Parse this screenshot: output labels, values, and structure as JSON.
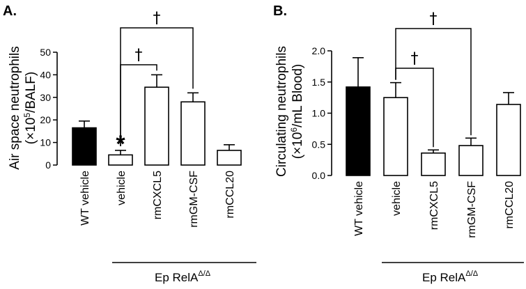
{
  "chart_data": [
    {
      "type": "bar",
      "panel": "A.",
      "ylabel_line1": "Air space neutrophils",
      "ylabel_line2_parts": [
        "(×10",
        "5",
        "/BALF)"
      ],
      "ylim": [
        0,
        50
      ],
      "yticks": [
        "0",
        "10",
        "20",
        "30",
        "40",
        "50"
      ],
      "categories": [
        "WT vehicle",
        "vehicle",
        "rmCXCL5",
        "rmGM-CSF",
        "rmCCL20"
      ],
      "values": [
        16.5,
        4.5,
        34.5,
        28,
        6.5
      ],
      "errors": [
        3,
        2,
        5.5,
        4,
        2.5
      ],
      "fills": [
        "#000000",
        "#ffffff",
        "#ffffff",
        "#ffffff",
        "#ffffff"
      ],
      "group_label_parts": [
        "Ep RelA",
        "Δ/Δ"
      ],
      "asterisk": {
        "bar": 1,
        "text": "*"
      },
      "brackets": [
        {
          "from": 1,
          "to": 2,
          "level": 10,
          "text": "†"
        },
        {
          "from": 1,
          "to": 3,
          "level": 33,
          "text": "†"
        }
      ]
    },
    {
      "type": "bar",
      "panel": "B.",
      "ylabel_line1": "Circulating neutrophils",
      "ylabel_line2_parts": [
        "(×10",
        "6",
        "/mL Blood)"
      ],
      "ylim": [
        0,
        2.0
      ],
      "yticks": [
        "0.0",
        "0.5",
        "1.0",
        "1.5",
        "2.0"
      ],
      "categories": [
        "WT vehicle",
        "vehicle",
        "rmCXCL5",
        "rmGM-CSF",
        "rmCCL20"
      ],
      "values": [
        1.42,
        1.25,
        0.36,
        0.48,
        1.14
      ],
      "errors": [
        0.47,
        0.24,
        0.05,
        0.12,
        0.19
      ],
      "fills": [
        "#000000",
        "#ffffff",
        "#ffffff",
        "#ffffff",
        "#ffffff"
      ],
      "group_label_parts": [
        "Ep RelA",
        "Δ/Δ"
      ],
      "brackets": [
        {
          "from": 1,
          "to": 2,
          "level": 0.62,
          "text": "†"
        },
        {
          "from": 1,
          "to": 3,
          "level": 0.56,
          "text": "†"
        }
      ]
    }
  ]
}
